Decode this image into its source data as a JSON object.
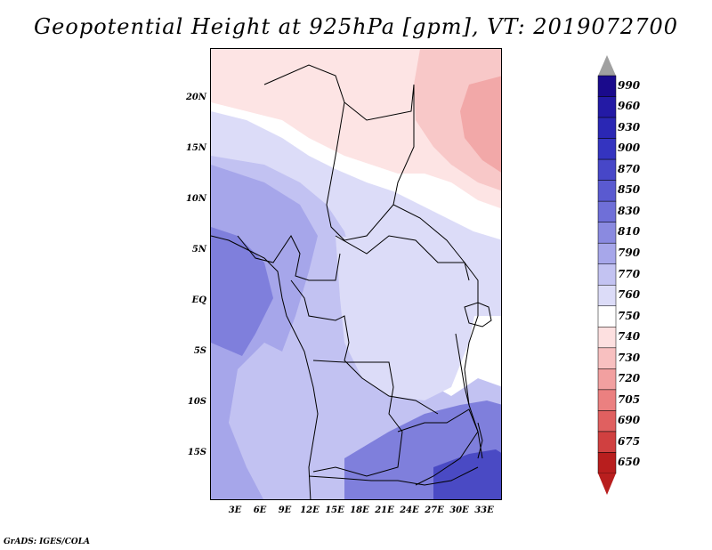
{
  "title": "Geopotential Height at 925hPa [gpm], VT: 2019072700",
  "credit": "GrADS: IGES/COLA",
  "axes": {
    "lat_labels": [
      "20N",
      "15N",
      "10N",
      "5N",
      "EQ",
      "5S",
      "10S",
      "15S"
    ],
    "lon_labels": [
      "3E",
      "6E",
      "9E",
      "12E",
      "15E",
      "18E",
      "21E",
      "24E",
      "27E",
      "30E",
      "33E"
    ]
  },
  "colorbar": {
    "levels": [
      "990",
      "960",
      "930",
      "900",
      "870",
      "850",
      "830",
      "810",
      "790",
      "770",
      "760",
      "750",
      "740",
      "730",
      "720",
      "705",
      "690",
      "675",
      "650"
    ],
    "colors": [
      "#1a0a8c",
      "#231aa5",
      "#2a27b4",
      "#3434c0",
      "#4747c8",
      "#5a5ad0",
      "#6f6fd8",
      "#8a8ae0",
      "#a7a7ea",
      "#c3c3f2",
      "#dcdcf8",
      "#ffffff",
      "#fde0e0",
      "#f8c0c0",
      "#f2a0a0",
      "#eb8080",
      "#e06060",
      "#d04040",
      "#b81e1e"
    ],
    "top_arrow": "#a0a0a0",
    "bottom_arrow": "#b81e1e"
  },
  "map_colors": {
    "deep_blue": "#4a4ac4",
    "blue": "#7f7fdc",
    "mid_blue": "#a6a6ea",
    "light_blue": "#c2c2f2",
    "pale_blue": "#dcdcf8",
    "white": "#ffffff",
    "pale_pink": "#fde4e4",
    "pink": "#f8c8c8",
    "salmon": "#f2a8a8",
    "red": "#e88080"
  }
}
